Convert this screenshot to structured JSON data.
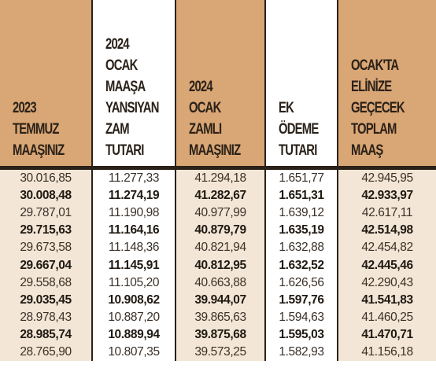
{
  "table": {
    "headers": [
      "2023\nTEMMUZ\nMAAŞINIZ",
      "2024\nOCAK\nMAAŞA\nYANSIYAN\nZAM\nTUTARI",
      "2024\nOCAK\nZAMLI\nMAAŞINIZ",
      "EK\nÖDEME\nTUTARI",
      "OCAK'TA\nELİNİZE\nGEÇECEK\nTOPLAM\nMAAŞ"
    ],
    "rows": [
      [
        "30.016,85",
        "11.277,33",
        "41.294,18",
        "1.651,77",
        "42.945,95"
      ],
      [
        "30.008,48",
        "11.274,19",
        "41.282,67",
        "1.651,31",
        "42.933,97"
      ],
      [
        "29.787,01",
        "11.190,98",
        "40.977,99",
        "1.639,12",
        "42.617,11"
      ],
      [
        "29.715,63",
        "11.164,16",
        "40.879,79",
        "1.635,19",
        "42.514,98"
      ],
      [
        "29.673,58",
        "11.148,36",
        "40.821,94",
        "1.632,88",
        "42.454,82"
      ],
      [
        "29.667,04",
        "11.145,91",
        "40.812,95",
        "1.632,52",
        "42.445,46"
      ],
      [
        "29.558,68",
        "11.105,20",
        "40.663,88",
        "1.626,56",
        "42.290,43"
      ],
      [
        "29.035,45",
        "10.908,62",
        "39.944,07",
        "1.597,76",
        "41.541,83"
      ],
      [
        "28.978,43",
        "10.887,20",
        "39.865,63",
        "1.594,63",
        "41.460,25"
      ],
      [
        "28.985,74",
        "10.889,94",
        "39.875,68",
        "1.595,03",
        "41.470,71"
      ],
      [
        "28.765,90",
        "10.807,35",
        "39.573,25",
        "1.582,93",
        "41.156,18"
      ]
    ]
  },
  "colors": {
    "header_tan": "#d9a675",
    "row_tan": "#f3e6d6",
    "rule": "#2a2118"
  }
}
